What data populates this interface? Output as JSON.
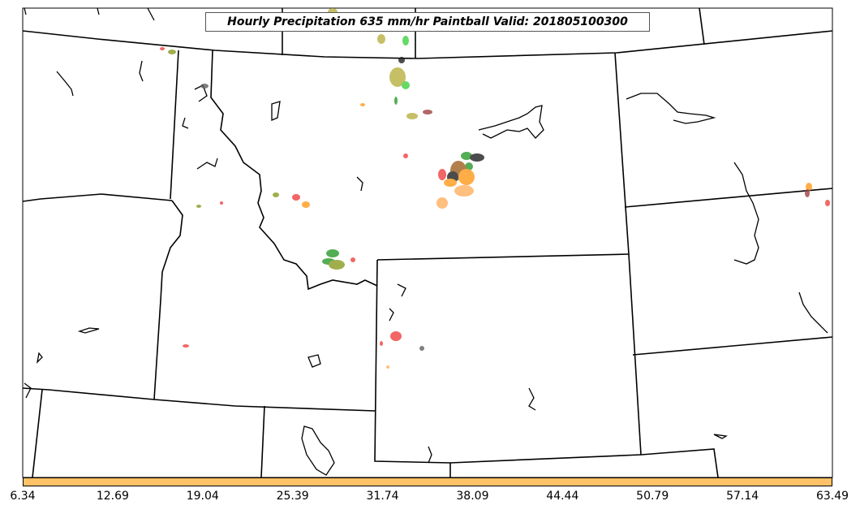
{
  "title": "Hourly Precipitation 635 mm/hr Paintball Valid: 201805100300",
  "colorbar": {
    "color": "#ffc266",
    "ticks": [
      "6.34",
      "12.69",
      "19.04",
      "25.39",
      "31.74",
      "38.09",
      "44.44",
      "50.79",
      "57.14",
      "63.49"
    ]
  },
  "colors": {
    "background": "#ffffff",
    "borders": "#000000",
    "paintball_palette": [
      "#f04040",
      "#ff9a1a",
      "#ffb060",
      "#8a9a20",
      "#b8b040",
      "#2a9a2a",
      "#40d040",
      "#202020",
      "#606060",
      "#a04040",
      "#a06020"
    ]
  }
}
